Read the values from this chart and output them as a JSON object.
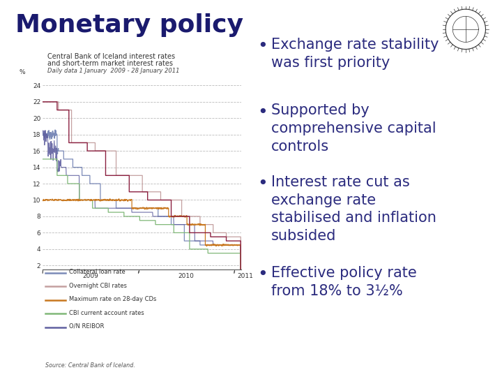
{
  "title": "Monetary policy",
  "title_color": "#1a1a6e",
  "title_fontsize": 26,
  "background_color": "#ffffff",
  "chart_title_line1": "Central Bank of Iceland interest rates",
  "chart_title_line2": "and short-term market interest rates",
  "chart_subtitle": "Daily data 1 January  2009 - 28 January 2011",
  "chart_ylabel": "%",
  "chart_yticks": [
    2,
    4,
    6,
    8,
    10,
    12,
    14,
    16,
    18,
    20,
    22,
    24
  ],
  "legend_items": [
    {
      "label": "Collateral loan rate",
      "color": "#7b8ab8"
    },
    {
      "label": "Overnight CBI rates",
      "color": "#c4a0a0"
    },
    {
      "label": "Maximum rate on 28-day CDs",
      "color": "#c87820"
    },
    {
      "label": "CBI current account rates",
      "color": "#80b878"
    },
    {
      "label": "O/N REIBOR",
      "color": "#6060a0"
    }
  ],
  "source_text": "Source: Central Bank of Iceland.",
  "bullet_color": "#2b2b7e",
  "bullet_fontsize": 15,
  "bullets": [
    "Exchange rate stability\nwas first priority",
    "Supported by\ncomprehensive capital\ncontrols",
    "Interest rate cut as\nexchange rate\nstabilised and inflation\nsubsided",
    "Effective policy rate\nfrom 18% to 3½%"
  ],
  "dark_red_color": "#8b2040"
}
